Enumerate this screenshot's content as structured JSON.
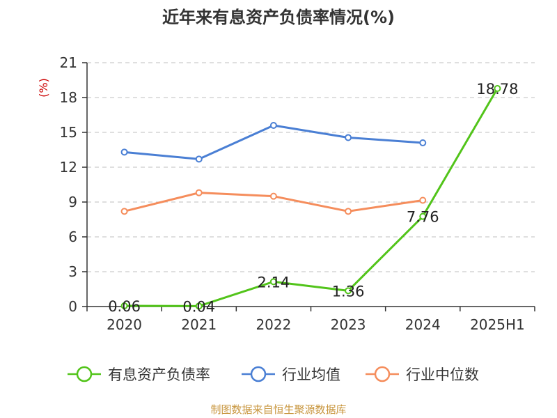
{
  "chart_data": {
    "type": "line",
    "title": "近年来有息资产负债率情况(%)",
    "ylabel": "(%)",
    "xlabel": "",
    "categories": [
      "2020",
      "2021",
      "2022",
      "2023",
      "2024",
      "2025H1"
    ],
    "ylim": [
      0,
      21
    ],
    "yticks": [
      0,
      3,
      6,
      9,
      12,
      15,
      18,
      21
    ],
    "grid": true,
    "legend_position": "bottom",
    "series": [
      {
        "name": "有息资产负债率",
        "color": "#52c41a",
        "values": [
          0.06,
          0.04,
          2.14,
          1.36,
          7.76,
          18.78
        ],
        "labels": [
          "0.06",
          "0.04",
          "2.14",
          "1.36",
          "7.76",
          "18.78"
        ]
      },
      {
        "name": "行业均值",
        "color": "#4a7fd4",
        "values": [
          13.3,
          12.7,
          15.6,
          14.55,
          14.1,
          null
        ]
      },
      {
        "name": "行业中位数",
        "color": "#f58d5c",
        "values": [
          8.2,
          9.8,
          9.5,
          8.2,
          9.15,
          null
        ]
      }
    ]
  },
  "source": "制图数据来自恒生聚源数据库"
}
